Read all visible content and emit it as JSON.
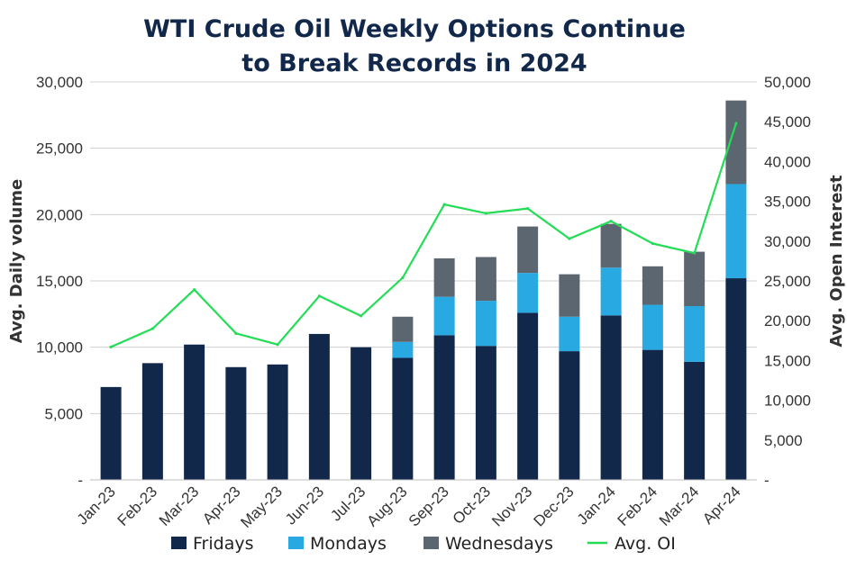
{
  "chart_data": {
    "type": "bar",
    "stacked": true,
    "title_lines": [
      "WTI Crude Oil Weekly Options Continue",
      "to Break Records in 2024"
    ],
    "xlabel": "",
    "ylabel": "Avg.  Daily volume",
    "y2label": "Avg. Open Interest",
    "categories": [
      "Jan-23",
      "Feb-23",
      "Mar-23",
      "Apr-23",
      "May-23",
      "Jun-23",
      "Jul-23",
      "Aug-23",
      "Sep-23",
      "Oct-23",
      "Nov-23",
      "Dec-23",
      "Jan-24",
      "Feb-24",
      "Mar-24",
      "Apr-24"
    ],
    "ylim": [
      0,
      30000
    ],
    "y2lim": [
      0,
      50000
    ],
    "yticks": [
      "-",
      "5,000",
      "10,000",
      "15,000",
      "20,000",
      "25,000",
      "30,000"
    ],
    "y2ticks": [
      "-",
      "5,000",
      "10,000",
      "15,000",
      "20,000",
      "25,000",
      "30,000",
      "35,000",
      "40,000",
      "45,000",
      "50,000"
    ],
    "grid": true,
    "legend_position": "bottom",
    "series": [
      {
        "name": "Fridays",
        "color": "#12284a",
        "axis": "left",
        "kind": "bar",
        "values": [
          7000,
          8800,
          10200,
          8500,
          8700,
          11000,
          10000,
          9200,
          10900,
          10100,
          12600,
          9700,
          12400,
          9800,
          8900,
          15200
        ]
      },
      {
        "name": "Mondays",
        "color": "#29a9e1",
        "axis": "left",
        "kind": "bar",
        "values": [
          0,
          0,
          0,
          0,
          0,
          0,
          0,
          1200,
          2900,
          3400,
          3000,
          2600,
          3600,
          3400,
          4200,
          7100
        ]
      },
      {
        "name": "Wednesdays",
        "color": "#5b6670",
        "axis": "left",
        "kind": "bar",
        "values": [
          0,
          0,
          0,
          0,
          0,
          0,
          0,
          1900,
          2900,
          3300,
          3500,
          3200,
          3300,
          2900,
          4100,
          6300
        ]
      },
      {
        "name": "Avg. OI",
        "color": "#22dd55",
        "axis": "right",
        "kind": "line",
        "values": [
          16700,
          19000,
          23900,
          18400,
          17000,
          23100,
          20600,
          25400,
          34600,
          33500,
          34100,
          30300,
          32500,
          29700,
          28500,
          44800
        ]
      }
    ]
  }
}
